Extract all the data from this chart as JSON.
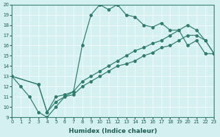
{
  "xlabel": "Humidex (Indice chaleur)",
  "bg_color": "#d4f0f0",
  "line_color": "#2e7d6e",
  "xlim": [
    0,
    23
  ],
  "ylim": [
    9,
    20
  ],
  "xticks": [
    0,
    1,
    2,
    3,
    4,
    5,
    6,
    7,
    8,
    9,
    10,
    11,
    12,
    13,
    14,
    15,
    16,
    17,
    18,
    19,
    20,
    21,
    22,
    23
  ],
  "yticks": [
    9,
    10,
    11,
    12,
    13,
    14,
    15,
    16,
    17,
    18,
    19,
    20
  ],
  "line1": {
    "x": [
      0,
      1,
      2,
      3,
      4,
      5,
      6,
      7,
      8,
      9,
      10,
      11,
      12,
      13,
      14,
      15,
      16,
      17,
      18,
      19,
      20,
      21,
      22,
      23
    ],
    "y": [
      13,
      12,
      11,
      9.5,
      9,
      10,
      11.0,
      11.5,
      16.0,
      19.0,
      20.0,
      19.5,
      20.0,
      19.0,
      18.8,
      18.0,
      17.8,
      18.2,
      17.5,
      17.5,
      16.0,
      16.5,
      15.2,
      15.2
    ]
  },
  "line2": {
    "x": [
      0,
      3,
      4,
      5,
      6,
      7,
      8,
      9,
      10,
      11,
      12,
      13,
      14,
      15,
      16,
      17,
      18,
      19,
      20,
      21,
      22,
      23
    ],
    "y": [
      13,
      12.2,
      9.5,
      11.0,
      11.2,
      11.5,
      12.5,
      13.0,
      13.5,
      14.0,
      14.5,
      15.0,
      15.5,
      15.8,
      16.2,
      16.5,
      17.0,
      17.5,
      18.0,
      17.5,
      16.5,
      15.2
    ]
  },
  "line3": {
    "x": [
      0,
      3,
      4,
      5,
      6,
      7,
      8,
      9,
      10,
      11,
      12,
      13,
      14,
      15,
      16,
      17,
      18,
      19,
      20,
      21,
      22,
      23
    ],
    "y": [
      13,
      12.2,
      9.5,
      10.5,
      11.0,
      11.2,
      12.0,
      12.5,
      13.0,
      13.5,
      14.0,
      14.2,
      14.5,
      15.0,
      15.3,
      15.8,
      16.0,
      16.5,
      17.0,
      17.0,
      16.5,
      15.2
    ]
  }
}
